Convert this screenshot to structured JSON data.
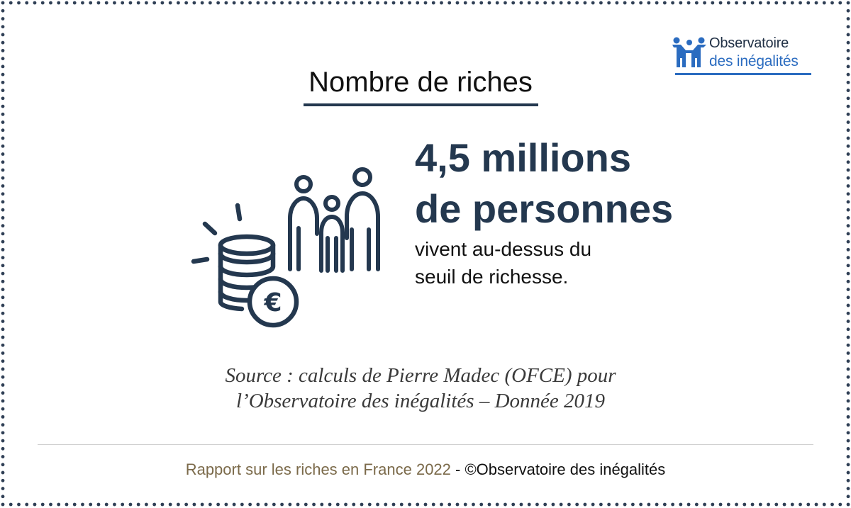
{
  "colors": {
    "navy": "#24384f",
    "logo_blue": "#2b6cc0",
    "footer_brown": "#7b6a4a",
    "border_dots": "#2f3f55"
  },
  "logo": {
    "line1": "Observatoire",
    "line2": "des inégalités",
    "icon": "people-holding-hands-icon"
  },
  "title": "Nombre de riches",
  "headline": {
    "line1": "4,5 millions",
    "line2": "de personnes"
  },
  "description": {
    "line1": "vivent au-dessus du",
    "line2": "seuil de richesse."
  },
  "illustration": {
    "icons": [
      "coin-stack-icon",
      "euro-coin-icon",
      "family-icon"
    ]
  },
  "source": {
    "line1": "Source : calculs de Pierre Madec (OFCE) pour",
    "line2": "l’Observatoire des inégalités – Donnée 2019"
  },
  "footer": {
    "report": "Rapport sur les riches en France 2022",
    "separator": " - ",
    "copyright": "©Observatoire des inégalités"
  }
}
